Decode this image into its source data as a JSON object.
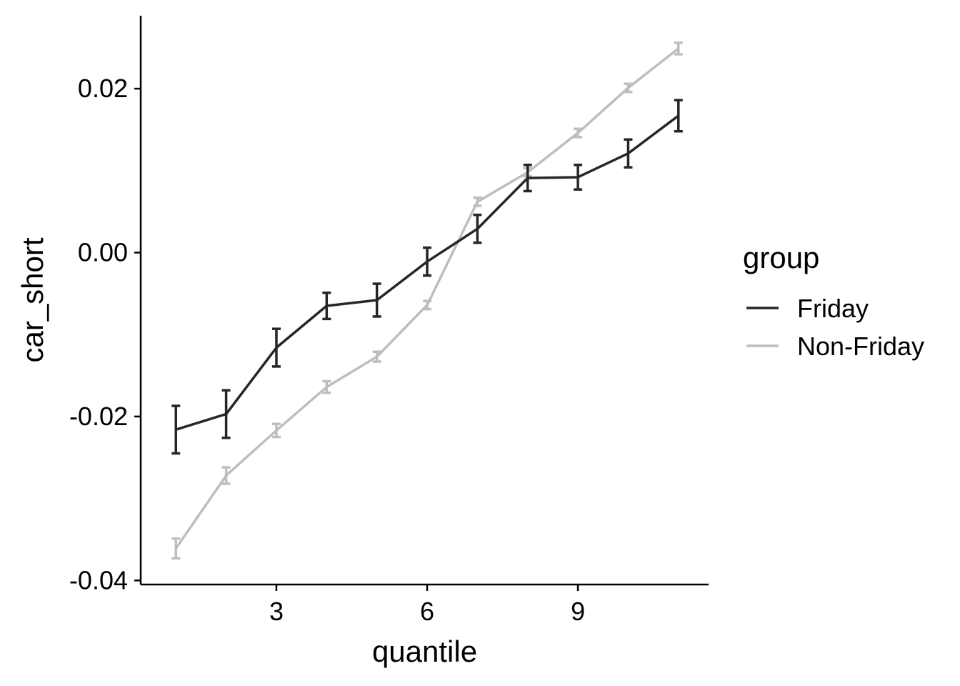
{
  "chart_data": {
    "type": "line",
    "xlabel": "quantile",
    "ylabel": "car_short",
    "xlim": [
      0.3,
      11.6
    ],
    "ylim": [
      -0.0405,
      0.0289
    ],
    "xticks": [
      3,
      6,
      9
    ],
    "xtick_labels": [
      "3",
      "6",
      "9"
    ],
    "yticks": [
      -0.04,
      -0.02,
      0.0,
      0.02
    ],
    "ytick_labels": [
      "-0.04",
      "-0.02",
      "0.00",
      "0.02"
    ],
    "grid": false,
    "legend": {
      "title": "group",
      "position": "right",
      "entries": [
        "Friday",
        "Non-Friday"
      ]
    },
    "series": [
      {
        "name": "Friday",
        "color": "#262626",
        "x": [
          1,
          2,
          3,
          4,
          5,
          6,
          7,
          8,
          9,
          10,
          11
        ],
        "y": [
          -0.0216,
          -0.0197,
          -0.0116,
          -0.0065,
          -0.0058,
          -0.0011,
          0.0029,
          0.0091,
          0.0092,
          0.0121,
          0.0167
        ],
        "err": [
          0.0029,
          0.0029,
          0.0023,
          0.0016,
          0.002,
          0.0017,
          0.0017,
          0.0016,
          0.0015,
          0.0017,
          0.0019
        ]
      },
      {
        "name": "Non-Friday",
        "color": "#bebebe",
        "x": [
          1,
          2,
          3,
          4,
          5,
          6,
          7,
          8,
          9,
          10,
          11
        ],
        "y": [
          -0.0361,
          -0.0272,
          -0.0217,
          -0.0164,
          -0.0127,
          -0.0064,
          0.0062,
          0.0098,
          0.0146,
          0.0201,
          0.0249
        ],
        "err": [
          0.0012,
          0.001,
          0.0008,
          0.0007,
          0.0006,
          0.0005,
          0.0005,
          0.0005,
          0.0005,
          0.0005,
          0.0007
        ]
      }
    ]
  }
}
